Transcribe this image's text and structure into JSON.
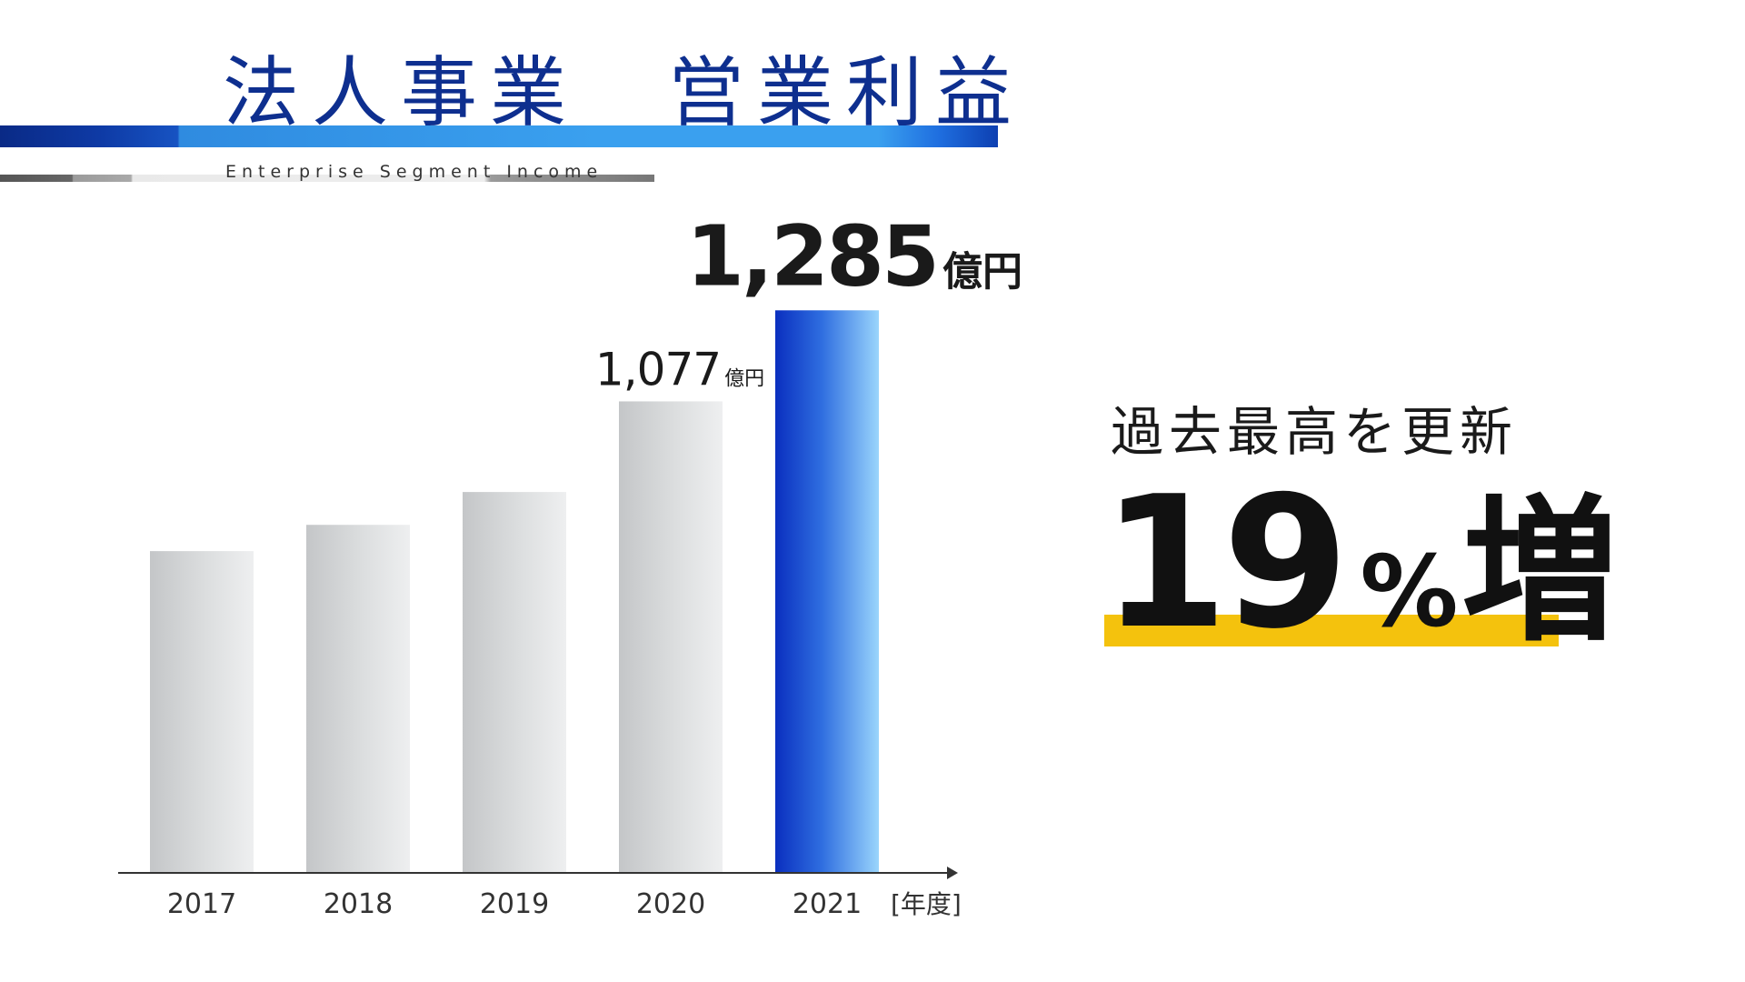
{
  "header": {
    "title": "法人事業　営業利益",
    "subtitle": "Enterprise Segment Income"
  },
  "callout": {
    "record_text": "過去最高を更新",
    "growth_number": "19",
    "growth_unit": "%",
    "growth_label": "増"
  },
  "colors": {
    "title": "#0e2f8f",
    "highlight_bar_top": "#0a2fbf",
    "highlight_bar_bottom": "#8fd0fb",
    "gray_bar": "#d4d6d8",
    "underline": "#f4c20d"
  },
  "chart_data": {
    "type": "bar",
    "title": "法人事業　営業利益",
    "xlabel": "[年度]",
    "ylabel": "",
    "unit": "億円",
    "categories": [
      "2017",
      "2018",
      "2019",
      "2020",
      "2021"
    ],
    "values": [
      735,
      795,
      870,
      1077,
      1285
    ],
    "ylim": [
      0,
      1350
    ],
    "data_labels": [
      {
        "category": "2020",
        "value": "1,077",
        "unit": "億円"
      },
      {
        "category": "2021",
        "value": "1,285",
        "unit": "億円"
      }
    ],
    "highlight": "2021",
    "grid": false,
    "legend": "none"
  }
}
